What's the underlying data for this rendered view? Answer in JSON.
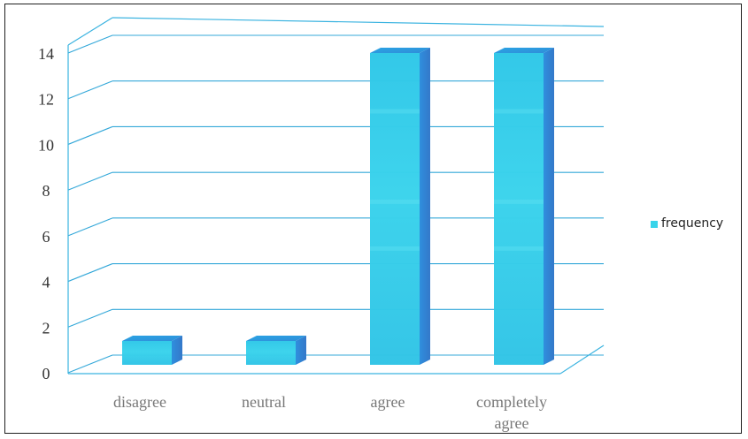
{
  "chart_data": {
    "type": "bar",
    "categories": [
      "disagree",
      "neutral",
      "agree",
      "completely agree"
    ],
    "series": [
      {
        "name": "frequency",
        "values": [
          0,
          0,
          14,
          14
        ],
        "color": "#38d4ea"
      }
    ],
    "ylim": [
      0,
      14
    ],
    "yticks": [
      0,
      2,
      4,
      6,
      8,
      10,
      12,
      14
    ],
    "grid": true,
    "legend": "right",
    "colors": {
      "front": "#38d4ea",
      "top": "#2fa9e8",
      "side": "#2f86d8",
      "grid": "#34a8d9",
      "tick_text": "#333333",
      "category_text": "#777777"
    },
    "category_lines": [
      [
        "disagree"
      ],
      [
        "neutral"
      ],
      [
        "agree"
      ],
      [
        "completely",
        "agree"
      ]
    ]
  }
}
